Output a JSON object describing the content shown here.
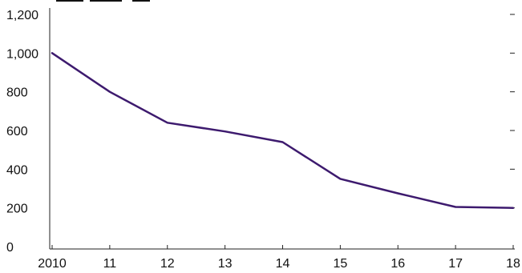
{
  "chart_data": {
    "type": "line",
    "title": "",
    "xlabel": "",
    "ylabel": "",
    "categories": [
      "2010",
      "11",
      "12",
      "13",
      "14",
      "15",
      "16",
      "17",
      "18"
    ],
    "ylim": [
      0,
      1200
    ],
    "y_ticks": [
      0,
      200,
      400,
      600,
      800,
      1000,
      1200
    ],
    "y_tick_labels": [
      "0",
      "200",
      "400",
      "600",
      "800",
      "1,000",
      "1,200"
    ],
    "series": [
      {
        "values": [
          1000,
          800,
          640,
          595,
          540,
          350,
          275,
          205,
          200
        ],
        "color": "#3d1a6e"
      }
    ],
    "grid": false,
    "legend": "none"
  }
}
